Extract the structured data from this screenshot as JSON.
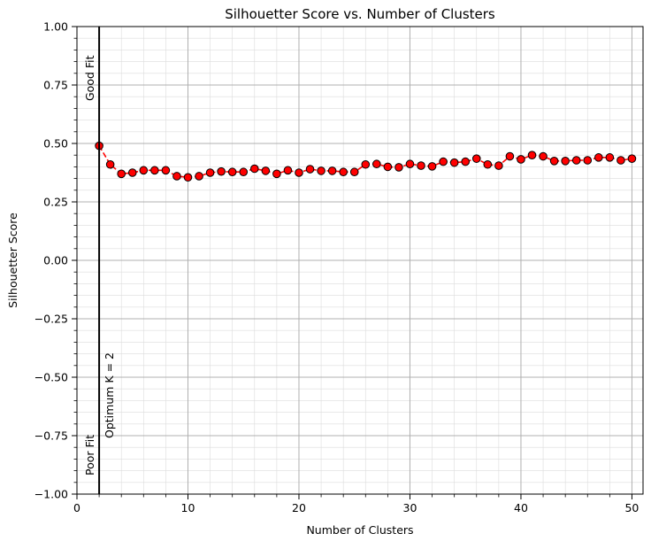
{
  "chart_data": {
    "type": "line",
    "title": "Silhouetter Score vs. Number of Clusters",
    "xlabel": "Number of Clusters",
    "ylabel": "Silhouetter Score",
    "xlim": [
      0,
      51
    ],
    "ylim": [
      -1.0,
      1.0
    ],
    "x_ticks": [
      0,
      10,
      20,
      30,
      40,
      50
    ],
    "x_tick_labels": [
      "0",
      "10",
      "20",
      "30",
      "40",
      "50"
    ],
    "y_ticks": [
      -1.0,
      -0.75,
      -0.5,
      -0.25,
      0.0,
      0.25,
      0.5,
      0.75,
      1.0
    ],
    "y_tick_labels": [
      "−1.00",
      "−0.75",
      "−0.50",
      "−0.25",
      "0.00",
      "0.25",
      "0.50",
      "0.75",
      "1.00"
    ],
    "grid": true,
    "minor_grid": true,
    "series": [
      {
        "style": "red dashed line with red circle markers (black edge)",
        "color": "#ff0000",
        "x": [
          2,
          3,
          4,
          5,
          6,
          7,
          8,
          9,
          10,
          11,
          12,
          13,
          14,
          15,
          16,
          17,
          18,
          19,
          20,
          21,
          22,
          23,
          24,
          25,
          26,
          27,
          28,
          29,
          30,
          31,
          32,
          33,
          34,
          35,
          36,
          37,
          38,
          39,
          40,
          41,
          42,
          43,
          44,
          45,
          46,
          47,
          48,
          49,
          50
        ],
        "y": [
          0.49,
          0.41,
          0.37,
          0.375,
          0.385,
          0.385,
          0.385,
          0.36,
          0.355,
          0.36,
          0.375,
          0.38,
          0.378,
          0.378,
          0.392,
          0.383,
          0.37,
          0.385,
          0.375,
          0.39,
          0.383,
          0.383,
          0.378,
          0.378,
          0.41,
          0.412,
          0.4,
          0.398,
          0.412,
          0.405,
          0.402,
          0.422,
          0.418,
          0.422,
          0.435,
          0.41,
          0.405,
          0.445,
          0.432,
          0.45,
          0.445,
          0.425,
          0.425,
          0.428,
          0.428,
          0.44,
          0.44,
          0.428,
          0.435
        ]
      }
    ],
    "vline": {
      "x": 2,
      "color": "#000000"
    },
    "annotations": {
      "good_fit": "Good Fit",
      "poor_fit": "Poor Fit",
      "optimum": "Optimum K = 2"
    }
  }
}
